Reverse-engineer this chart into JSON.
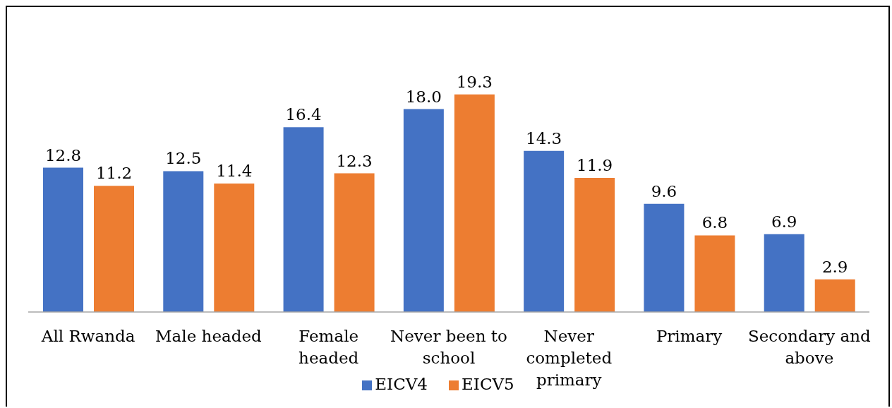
{
  "chart_data": {
    "type": "bar",
    "categories": [
      "All Rwanda",
      "Male headed",
      "Female headed",
      "Never been to school",
      "Never completed primary",
      "Primary",
      "Secondary and above"
    ],
    "series": [
      {
        "name": "EICV4",
        "color": "#4472c4",
        "values": [
          12.8,
          12.5,
          16.4,
          18.0,
          14.3,
          9.6,
          6.9
        ],
        "value_labels": [
          "12.8",
          "12.5",
          "16.4",
          "18.0",
          "14.3",
          "9.6",
          "6.9"
        ]
      },
      {
        "name": "EICV5",
        "color": "#ed7d31",
        "values": [
          11.2,
          11.4,
          12.3,
          19.3,
          11.9,
          6.8,
          2.9
        ],
        "value_labels": [
          "11.2",
          "11.4",
          "12.3",
          "19.3",
          "11.9",
          "6.8",
          "2.9"
        ]
      }
    ],
    "legend": "bottom"
  }
}
